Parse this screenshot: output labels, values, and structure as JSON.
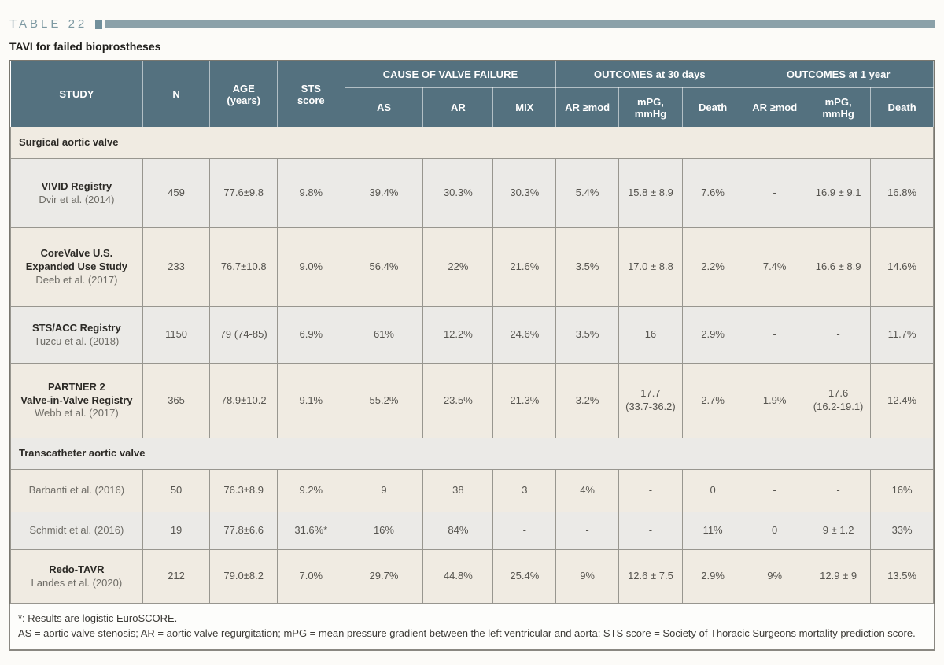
{
  "page": {
    "table_label": "TABLE 22",
    "title": "TAVI for failed bioprostheses"
  },
  "colors": {
    "header_bg": "#54717f",
    "accent_bar": "#8ba1a9",
    "label_text": "#7d99a2",
    "row_cream": "#f0ebe2",
    "row_gray": "#ebeae7"
  },
  "header": {
    "study": "STUDY",
    "n": "N",
    "age": "AGE\n(years)",
    "sts": "STS\nscore",
    "group_cause": "CAUSE OF VALVE FAILURE",
    "group_30d": "OUTCOMES at 30 days",
    "group_1y": "OUTCOMES at 1 year",
    "sub": [
      "AS",
      "AR",
      "MIX",
      "AR ≥mod",
      "mPG,\nmmHg",
      "Death",
      "AR ≥mod",
      "mPG,\nmmHg",
      "Death"
    ]
  },
  "sections": [
    {
      "label": "Surgical aortic valve",
      "rows": [
        {
          "study": "VIVID Registry",
          "author": "Dvir et al. (2014)",
          "values": [
            "459",
            "77.6±9.8",
            "9.8%",
            "39.4%",
            "30.3%",
            "30.3%",
            "5.4%",
            "15.8 ± 8.9",
            "7.6%",
            "-",
            "16.9 ± 9.1",
            "16.8%"
          ]
        },
        {
          "study": "CoreValve U.S.\nExpanded Use Study",
          "author": "Deeb et al. (2017)",
          "values": [
            "233",
            "76.7±10.8",
            "9.0%",
            "56.4%",
            "22%",
            "21.6%",
            "3.5%",
            "17.0 ± 8.8",
            "2.2%",
            "7.4%",
            "16.6 ± 8.9",
            "14.6%"
          ]
        },
        {
          "study": "STS/ACC Registry",
          "author": "Tuzcu et al. (2018)",
          "values": [
            "1150",
            "79 (74-85)",
            "6.9%",
            "61%",
            "12.2%",
            "24.6%",
            "3.5%",
            "16",
            "2.9%",
            "-",
            "-",
            "11.7%"
          ]
        },
        {
          "study": "PARTNER 2\nValve-in-Valve Registry",
          "author": "Webb et al. (2017)",
          "values": [
            "365",
            "78.9±10.2",
            "9.1%",
            "55.2%",
            "23.5%",
            "21.3%",
            "3.2%",
            "17.7\n(33.7-36.2)",
            "2.7%",
            "1.9%",
            "17.6\n(16.2-19.1)",
            "12.4%"
          ]
        }
      ]
    },
    {
      "label": "Transcatheter aortic valve",
      "rows": [
        {
          "study": "",
          "author": "Barbanti et al. (2016)",
          "values": [
            "50",
            "76.3±8.9",
            "9.2%",
            "9",
            "38",
            "3",
            "4%",
            "-",
            "0",
            "-",
            "-",
            "16%"
          ]
        },
        {
          "study": "",
          "author": "Schmidt et al. (2016)",
          "values": [
            "19",
            "77.8±6.6",
            "31.6%*",
            "16%",
            "84%",
            "-",
            "-",
            "-",
            "11%",
            "0",
            "9 ± 1.2",
            "33%"
          ]
        },
        {
          "study": "Redo-TAVR",
          "author": "Landes et al. (2020)",
          "values": [
            "212",
            "79.0±8.2",
            "7.0%",
            "29.7%",
            "44.8%",
            "25.4%",
            "9%",
            "12.6 ± 7.5",
            "2.9%",
            "9%",
            "12.9 ± 9",
            "13.5%"
          ]
        }
      ]
    }
  ],
  "footnotes": [
    "*: Results are logistic EuroSCORE.",
    "AS = aortic valve stenosis; AR = aortic valve regurgitation; mPG = mean pressure gradient between the left ventricular and aorta; STS score = Society of Thoracic Surgeons mortality prediction score."
  ]
}
